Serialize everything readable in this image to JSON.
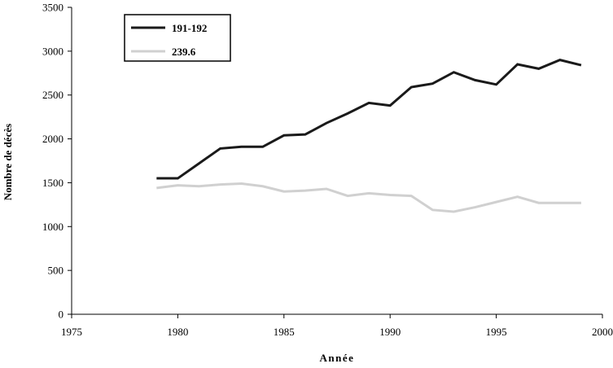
{
  "chart_data": {
    "type": "line",
    "title": "",
    "xlabel": "Année",
    "ylabel": "Nombre de décès",
    "xlim": [
      1975,
      2000
    ],
    "ylim": [
      0,
      3500
    ],
    "xticks": [
      1975,
      1980,
      1985,
      1990,
      1995,
      2000
    ],
    "yticks": [
      0,
      500,
      1000,
      1500,
      2000,
      2500,
      3000,
      3500
    ],
    "xtick_labels": [
      "1975",
      "1980",
      "1985",
      "1990",
      "1995",
      "2000"
    ],
    "ytick_labels": [
      "0",
      "500",
      "1000",
      "1500",
      "2000",
      "2500",
      "3000",
      "3500"
    ],
    "grid": false,
    "legend_position": "top-left",
    "x": [
      1979,
      1980,
      1981,
      1982,
      1983,
      1984,
      1985,
      1986,
      1987,
      1988,
      1989,
      1990,
      1991,
      1992,
      1993,
      1994,
      1995,
      1996,
      1997,
      1998,
      1999
    ],
    "series": [
      {
        "name": "191-192",
        "color": "#1a1a1a",
        "values": [
          1550,
          1550,
          1720,
          1890,
          1910,
          1910,
          2040,
          2050,
          2180,
          2290,
          2410,
          2380,
          2590,
          2630,
          2760,
          2670,
          2620,
          2850,
          2800,
          2900,
          2840
        ]
      },
      {
        "name": "239.6",
        "color": "#d0d0d0",
        "values": [
          1440,
          1470,
          1460,
          1480,
          1490,
          1460,
          1400,
          1410,
          1430,
          1350,
          1380,
          1360,
          1350,
          1190,
          1170,
          1220,
          1280,
          1340,
          1270,
          1270,
          1270
        ]
      }
    ]
  }
}
